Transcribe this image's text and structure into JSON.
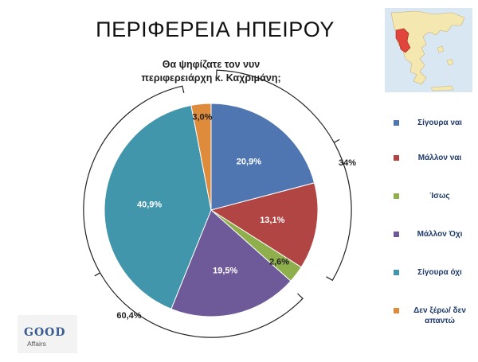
{
  "title": "ΠΕΡΙΦΕΡΕΙΑ ΗΠΕΙΡΟΥ",
  "subtitle_line1": "Θα ψηφίζατε τον νυν",
  "subtitle_line2": "περιφερειάρχη κ. Καχριμάνη;",
  "chart_data": {
    "type": "pie",
    "categories": [
      "Σίγουρα ναι",
      "Μάλλον ναι",
      "Ίσως",
      "Μάλλον Όχι",
      "Σίγουρα όχι",
      "Δεν ξέρω/ δεν απαντώ"
    ],
    "values": [
      20.9,
      13.1,
      2.6,
      19.5,
      40.9,
      3.0
    ],
    "value_labels": [
      "20,9%",
      "13,1%",
      "2,6%",
      "19,5%",
      "40,9%",
      "3,0%"
    ],
    "colors": [
      "#4f76b0",
      "#b14543",
      "#8faf4c",
      "#6e5a98",
      "#4196ac",
      "#df8b3c"
    ],
    "legend_placement": "right",
    "annotations": [
      {
        "label": "34%",
        "applies_to": [
          "Σίγουρα ναι",
          "Μάλλον ναι"
        ]
      },
      {
        "label": "60,4%",
        "applies_to": [
          "Μάλλον Όχι",
          "Σίγουρα όχι"
        ]
      }
    ]
  },
  "map": {
    "highlight_color": "#e0443a",
    "land_color": "#f5e7b0",
    "sea_color": "#d9e7f2"
  },
  "logo": {
    "name": "GOOD",
    "sub": "Affairs",
    "color": "#3b5d8f"
  }
}
